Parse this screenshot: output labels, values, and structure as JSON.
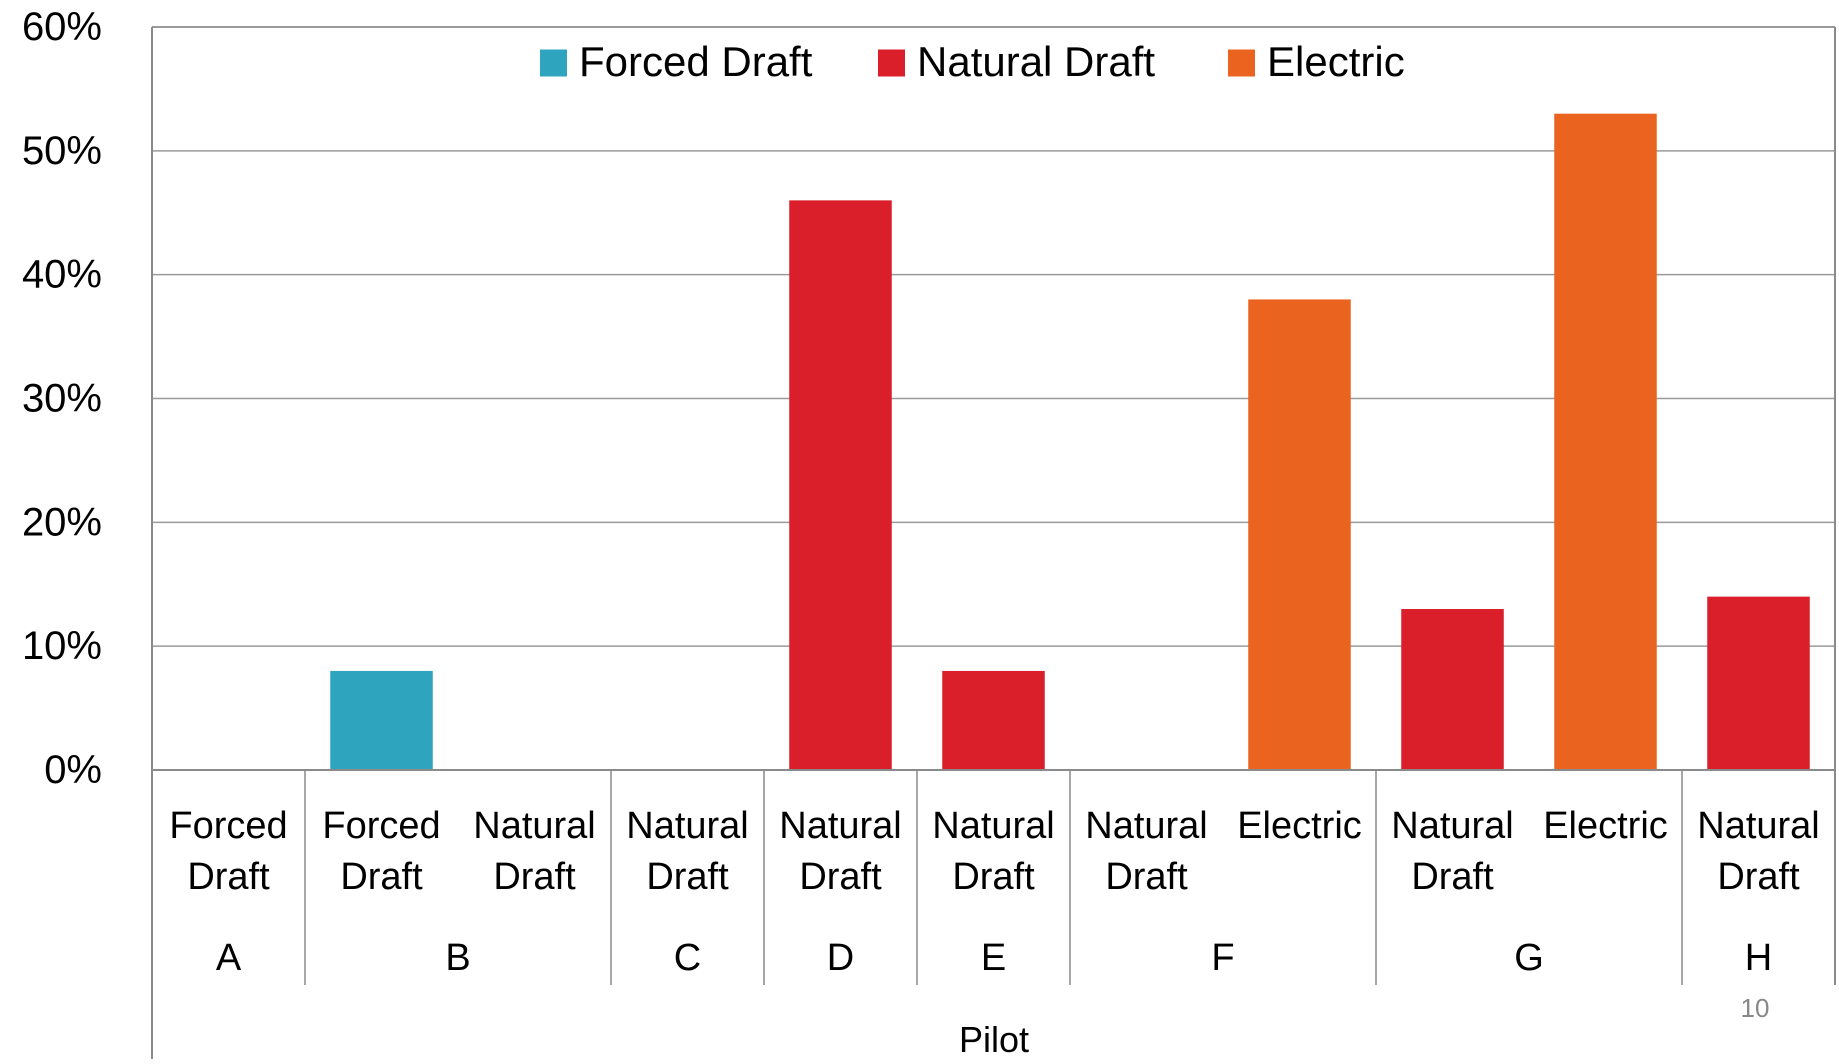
{
  "chart_data": {
    "type": "bar",
    "title": "",
    "xlabel": "Pilot",
    "ylabel": "",
    "ylim": [
      0,
      0.6
    ],
    "y_ticks": [
      0,
      0.1,
      0.2,
      0.3,
      0.4,
      0.5,
      0.6
    ],
    "y_tick_labels": [
      "0%",
      "10%",
      "20%",
      "30%",
      "40%",
      "50%",
      "60%"
    ],
    "grid": true,
    "legend_position": "top-center",
    "series": [
      {
        "name": "Forced Draft",
        "color": "#2FA4BF"
      },
      {
        "name": "Natural Draft",
        "color": "#DA1F2B"
      },
      {
        "name": "Electric",
        "color": "#EA6420"
      }
    ],
    "groups": [
      {
        "label": "A",
        "items": [
          {
            "category": "Forced Draft",
            "series": 0,
            "value": 0
          }
        ]
      },
      {
        "label": "B",
        "items": [
          {
            "category": "Forced Draft",
            "series": 0,
            "value": 0.08
          },
          {
            "category": "Natural Draft",
            "series": 1,
            "value": 0
          }
        ]
      },
      {
        "label": "C",
        "items": [
          {
            "category": "Natural Draft",
            "series": 1,
            "value": 0
          }
        ]
      },
      {
        "label": "D",
        "items": [
          {
            "category": "Natural Draft",
            "series": 1,
            "value": 0.46
          }
        ]
      },
      {
        "label": "E",
        "items": [
          {
            "category": "Natural Draft",
            "series": 1,
            "value": 0.08
          }
        ]
      },
      {
        "label": "F",
        "items": [
          {
            "category": "Natural Draft",
            "series": 1,
            "value": 0
          },
          {
            "category": "Electric",
            "series": 2,
            "value": 0.38
          }
        ]
      },
      {
        "label": "G",
        "items": [
          {
            "category": "Natural Draft",
            "series": 1,
            "value": 0.13
          },
          {
            "category": "Electric",
            "series": 2,
            "value": 0.53
          }
        ]
      },
      {
        "label": "H",
        "items": [
          {
            "category": "Natural Draft",
            "series": 1,
            "value": 0.14
          }
        ]
      }
    ]
  },
  "page_number": "10"
}
